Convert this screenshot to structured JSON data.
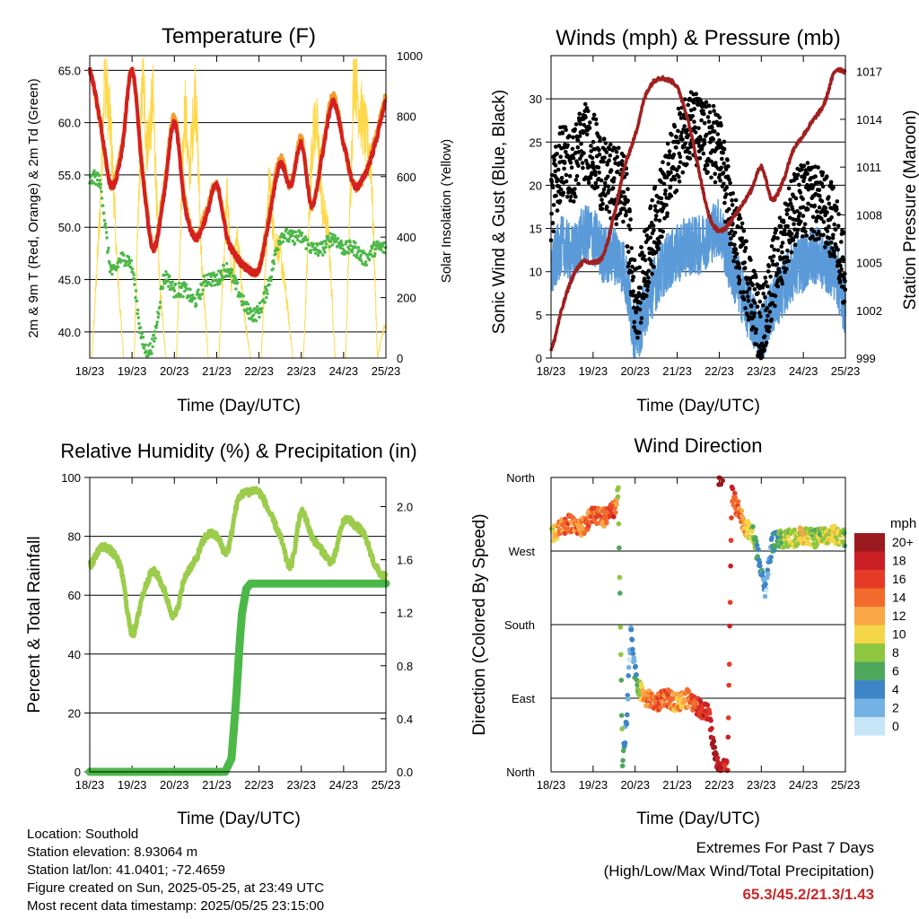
{
  "x_ticks": [
    "18/23",
    "19/23",
    "20/23",
    "21/23",
    "22/23",
    "23/23",
    "24/23",
    "25/23"
  ],
  "colors": {
    "temp2m": "#d42020",
    "temp9m": "#f39c2a",
    "dewpoint": "#4cb848",
    "solar": "#ffd84a",
    "wind": "#5a9ad8",
    "gust": "#000000",
    "pressure": "#a02020",
    "rh": "#9ccc4c",
    "precip": "#4cb848",
    "extremes": "#c8282a"
  },
  "chart_data": [
    {
      "type": "line",
      "title": "Temperature (F)",
      "xlabel": "Time (Day/UTC)",
      "ylabel": "2m & 9m T (Red, Orange) & 2m Td (Green)",
      "y2label": "Solar Insolation (Yellow)",
      "ylim": [
        37.5,
        66.4
      ],
      "y2lim": [
        0,
        1000
      ],
      "yticks": [
        "40.0",
        "45.0",
        "50.0",
        "55.0",
        "60.0",
        "65.0"
      ],
      "y2ticks": [
        "0",
        "200",
        "400",
        "600",
        "800",
        "1000"
      ],
      "x": [
        0,
        0.25,
        0.5,
        0.75,
        1,
        1.25,
        1.5,
        1.75,
        2,
        2.25,
        2.5,
        2.75,
        3,
        3.25,
        3.5,
        3.75,
        4,
        4.25,
        4.5,
        4.75,
        5,
        5.25,
        5.5,
        5.75,
        6,
        6.25,
        6.5,
        6.75,
        7
      ],
      "series": [
        {
          "name": "2m T",
          "values": [
            65,
            60,
            54,
            57,
            65,
            55,
            48,
            53,
            60,
            52,
            49,
            51,
            54,
            49,
            47,
            46,
            46,
            51,
            56,
            54,
            58,
            52,
            57,
            62,
            58,
            54,
            55,
            58,
            62
          ]
        },
        {
          "name": "9m T",
          "values": [
            65,
            60,
            54,
            57.5,
            65,
            55.5,
            48,
            53.5,
            60.5,
            52.5,
            49,
            51.5,
            54,
            49,
            47,
            46,
            46,
            51.5,
            56.5,
            54,
            58.5,
            52,
            57.5,
            62.5,
            58,
            54,
            55,
            58.5,
            62.5
          ]
        },
        {
          "name": "2m Td",
          "values": [
            54.5,
            54,
            46,
            47,
            46,
            39,
            39,
            45,
            44,
            44,
            43,
            45,
            45,
            46,
            44,
            42,
            42,
            45,
            49,
            49,
            49,
            48,
            48,
            49,
            48,
            48,
            47,
            48,
            48
          ]
        },
        {
          "name": "Solar",
          "x": [
            0.05,
            0.25,
            0.35,
            0.5,
            0.65,
            0.8,
            1.05,
            1.25,
            1.35,
            1.5,
            1.65,
            1.8,
            2.05,
            2.25,
            2.35,
            2.5,
            2.65,
            2.8,
            3.05,
            3.25,
            3.35,
            3.5,
            3.65,
            3.8,
            4.05,
            4.25,
            4.35,
            4.5,
            4.65,
            4.8,
            5.05,
            5.25,
            5.35,
            5.5,
            5.65,
            5.8,
            6.05,
            6.25,
            6.35,
            6.5,
            6.65,
            6.8,
            6.95
          ],
          "values": [
            0,
            500,
            950,
            750,
            300,
            0,
            0,
            950,
            700,
            850,
            250,
            0,
            0,
            850,
            600,
            900,
            300,
            0,
            0,
            550,
            250,
            400,
            150,
            0,
            0,
            600,
            400,
            350,
            200,
            0,
            0,
            700,
            800,
            500,
            400,
            0,
            0,
            980,
            850,
            750,
            650,
            0,
            100
          ]
        }
      ]
    },
    {
      "type": "line",
      "title": "Winds (mph) & Pressure (mb)",
      "xlabel": "Time (Day/UTC)",
      "ylabel": "Sonic Wind & Gust (Blue, Black)",
      "y2label": "Station Pressure (Maroon)",
      "ylim": [
        0,
        35
      ],
      "y2lim": [
        999,
        1018
      ],
      "yticks": [
        "0",
        "5",
        "10",
        "15",
        "20",
        "25",
        "30"
      ],
      "y2ticks": [
        "999",
        "1002",
        "1005",
        "1008",
        "1011",
        "1014",
        "1017"
      ],
      "x": [
        0,
        0.25,
        0.5,
        0.75,
        1,
        1.25,
        1.5,
        1.75,
        2,
        2.25,
        2.5,
        2.75,
        3,
        3.25,
        3.5,
        3.75,
        4,
        4.25,
        4.5,
        4.75,
        5,
        5.25,
        5.5,
        5.75,
        6,
        6.25,
        6.5,
        6.75,
        7
      ],
      "series": [
        {
          "name": "Sonic Wind",
          "values": [
            10,
            13,
            12,
            14,
            14,
            12,
            12,
            10,
            3,
            6,
            9,
            11,
            12,
            13,
            13,
            14,
            15,
            11,
            8,
            5,
            3,
            6,
            8,
            10,
            11,
            12,
            11,
            10,
            6
          ]
        },
        {
          "name": "Gust",
          "values": [
            18,
            23,
            22,
            25,
            24,
            21,
            20,
            19,
            7,
            11,
            16,
            20,
            24,
            27,
            26,
            25,
            24,
            17,
            12,
            8,
            4,
            9,
            13,
            17,
            18,
            18,
            17,
            15,
            10
          ]
        },
        {
          "name": "Station Pressure",
          "values": [
            999.5,
            1002,
            1004,
            1005,
            1005,
            1005.5,
            1008,
            1011,
            1013,
            1015.5,
            1016.5,
            1016.5,
            1016,
            1014,
            1011,
            1008,
            1007,
            1007.5,
            1008.5,
            1009.5,
            1011,
            1009,
            1010,
            1012,
            1013,
            1014,
            1015,
            1017,
            1017
          ]
        }
      ]
    },
    {
      "type": "line",
      "title": "Relative Humidity (%) & Precipitation (in)",
      "xlabel": "Time (Day/UTC)",
      "ylabel": "Percent & Total Rainfall",
      "ylim": [
        0,
        100
      ],
      "y2lim": [
        0,
        2.22
      ],
      "yticks": [
        "0",
        "20",
        "40",
        "60",
        "80",
        "100"
      ],
      "y2ticks": [
        "0.0",
        "0.4",
        "0.8",
        "1.2",
        "1.6",
        "2.0"
      ],
      "x": [
        0,
        0.25,
        0.5,
        0.75,
        1,
        1.25,
        1.5,
        1.75,
        2,
        2.25,
        2.5,
        2.75,
        3,
        3.25,
        3.5,
        3.75,
        4,
        4.25,
        4.5,
        4.75,
        5,
        5.25,
        5.5,
        5.75,
        6,
        6.25,
        6.5,
        6.75,
        7
      ],
      "series": [
        {
          "name": "RH",
          "values": [
            70,
            76,
            75,
            68,
            47,
            60,
            68,
            62,
            53,
            66,
            72,
            80,
            80,
            75,
            92,
            95,
            95,
            88,
            80,
            70,
            88,
            80,
            75,
            72,
            85,
            84,
            80,
            70,
            66
          ]
        },
        {
          "name": "Precipitation",
          "x": [
            0,
            3.2,
            3.35,
            3.45,
            3.55,
            3.6,
            3.7,
            3.8,
            4,
            7
          ],
          "values": [
            0,
            0,
            0.1,
            0.5,
            1.0,
            1.2,
            1.38,
            1.42,
            1.42,
            1.42
          ]
        }
      ]
    },
    {
      "type": "scatter",
      "title": "Wind Direction",
      "xlabel": "Time (Day/UTC)",
      "ylabel": "Direction (Colored By Speed)",
      "yticks": [
        "North",
        "East",
        "South",
        "West",
        "North"
      ],
      "legend_title": "mph",
      "legend": [
        "20+",
        "18",
        "16",
        "14",
        "12",
        "10",
        "8",
        "6",
        "4",
        "2",
        "0"
      ],
      "legend_colors": [
        "#9b1a1f",
        "#c81e24",
        "#e53a26",
        "#f26a2c",
        "#f8a646",
        "#f5d648",
        "#8ec63f",
        "#4da85c",
        "#3d85c6",
        "#74b2e3",
        "#c6e6f7"
      ],
      "x": [
        0,
        0.25,
        0.5,
        0.75,
        1,
        1.25,
        1.5,
        1.6,
        1.7,
        1.8,
        1.9,
        2.0,
        2.1,
        2.25,
        2.5,
        2.75,
        3,
        3.25,
        3.5,
        3.75,
        3.9,
        4.0,
        4.2,
        4.3,
        4.6,
        4.8,
        5.0,
        5.1,
        5.25,
        5.5,
        5.75,
        6,
        6.25,
        6.5,
        6.75,
        7
      ],
      "series": [
        {
          "name": "direction",
          "values": [
            290,
            300,
            305,
            300,
            315,
            310,
            320,
            340,
            10,
            60,
            180,
            120,
            100,
            90,
            85,
            90,
            85,
            90,
            80,
            70,
            20,
            0,
            10,
            340,
            300,
            290,
            250,
            220,
            280,
            285,
            285,
            290,
            285,
            290,
            290,
            285
          ]
        },
        {
          "name": "speed",
          "values": [
            8,
            14,
            14,
            13,
            15,
            14,
            16,
            8,
            6,
            4,
            2,
            4,
            8,
            13,
            14,
            14,
            12,
            13,
            16,
            18,
            20,
            20,
            18,
            16,
            12,
            8,
            4,
            2,
            4,
            8,
            9,
            10,
            8,
            9,
            10,
            8
          ]
        }
      ]
    }
  ],
  "info": {
    "location": "Location: Southold",
    "elevation": "Station elevation: 8.93064 m",
    "latlon": "Station lat/lon: 41.0401; -72.4659",
    "created": "Figure created on Sun, 2025-05-25, at 23:49 UTC",
    "recent": "Most recent data timestamp: 2025/05/25 23:15:00"
  },
  "extremes": {
    "title": "Extremes For Past 7 Days",
    "subtitle": "(High/Low/Max Wind/Total Precipitation)",
    "values": "65.3/45.2/21.3/1.43"
  }
}
